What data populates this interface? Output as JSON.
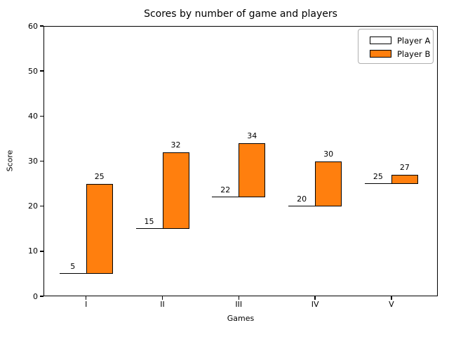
{
  "chart_data": {
    "type": "bar",
    "title": "Scores by number of game and players",
    "xlabel": "Games",
    "ylabel": "Score",
    "categories": [
      "I",
      "II",
      "III",
      "IV",
      "V"
    ],
    "series": [
      {
        "name": "Player A",
        "color": "#ffffff",
        "edge_color": "#000000",
        "values": [
          5,
          15,
          22,
          20,
          25
        ]
      },
      {
        "name": "Player B",
        "color": "#ff7f0e",
        "edge_color": "#000000",
        "values": [
          25,
          32,
          34,
          30,
          27
        ]
      }
    ],
    "bar_value_labels_shown": true,
    "ylim": [
      0,
      60
    ],
    "yticks": [
      0,
      10,
      20,
      30,
      40,
      50,
      60
    ],
    "grid": false,
    "legend": {
      "position": "upper right",
      "entries": [
        "Player A",
        "Player B"
      ]
    },
    "style_note": "Player A bars render as flat lines at their value; Player B bars float from Player A's value up to Player B's value"
  }
}
